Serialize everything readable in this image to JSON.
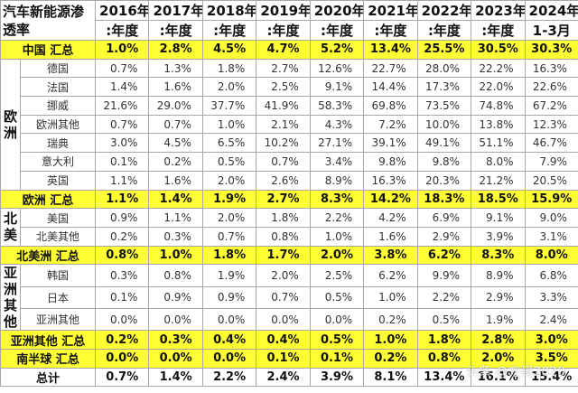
{
  "table": {
    "title": "汽车新能源渗透率",
    "years": [
      "2016年",
      "2017年",
      "2018年",
      "2019年",
      "2020年",
      "2021年",
      "2022年",
      "2023年",
      "2024年"
    ],
    "periods": [
      ":年度",
      ":年度",
      ":年度",
      ":年度",
      ":年度",
      ":年度",
      ":年度",
      ":年度",
      "1-3月"
    ],
    "sections": [
      {
        "summary": {
          "label": "中国 汇总",
          "values": [
            "1.0%",
            "2.8%",
            "4.5%",
            "4.7%",
            "5.2%",
            "13.4%",
            "25.5%",
            "30.5%",
            "30.3%"
          ]
        }
      },
      {
        "region": "欧洲",
        "rows": [
          {
            "label": "德国",
            "values": [
              "0.7%",
              "1.3%",
              "1.8%",
              "2.7%",
              "12.6%",
              "22.7%",
              "28.0%",
              "22.2%",
              "16.3%"
            ]
          },
          {
            "label": "法国",
            "values": [
              "1.4%",
              "1.6%",
              "2.0%",
              "2.5%",
              "9.1%",
              "14.4%",
              "17.3%",
              "22.0%",
              "22.6%"
            ]
          },
          {
            "label": "挪威",
            "values": [
              "21.6%",
              "29.0%",
              "37.7%",
              "41.9%",
              "58.3%",
              "69.8%",
              "73.5%",
              "74.8%",
              "67.2%"
            ]
          },
          {
            "label": "欧洲其他",
            "values": [
              "0.7%",
              "0.7%",
              "1.0%",
              "2.1%",
              "4.3%",
              "7.2%",
              "10.0%",
              "13.8%",
              "12.3%"
            ]
          },
          {
            "label": "瑞典",
            "values": [
              "3.0%",
              "4.5%",
              "6.5%",
              "10.2%",
              "27.1%",
              "39.1%",
              "49.1%",
              "51.1%",
              "46.7%"
            ]
          },
          {
            "label": "意大利",
            "values": [
              "0.1%",
              "0.2%",
              "0.5%",
              "0.7%",
              "3.4%",
              "9.8%",
              "9.8%",
              "8.0%",
              "7.9%"
            ]
          },
          {
            "label": "英国",
            "values": [
              "1.1%",
              "1.6%",
              "2.0%",
              "2.6%",
              "8.9%",
              "16.3%",
              "20.3%",
              "21.2%",
              "20.5%"
            ]
          }
        ],
        "summary": {
          "label": "欧洲 汇总",
          "values": [
            "1.1%",
            "1.4%",
            "1.9%",
            "2.7%",
            "8.3%",
            "14.2%",
            "18.3%",
            "18.5%",
            "15.9%"
          ]
        }
      },
      {
        "region": "北美",
        "rows": [
          {
            "label": "美国",
            "values": [
              "0.9%",
              "1.1%",
              "2.0%",
              "1.8%",
              "2.2%",
              "4.2%",
              "6.9%",
              "9.1%",
              "9.0%"
            ]
          },
          {
            "label": "北美其他",
            "values": [
              "0.2%",
              "0.3%",
              "0.7%",
              "0.8%",
              "1.0%",
              "1.6%",
              "2.9%",
              "3.9%",
              "3.1%"
            ]
          }
        ],
        "summary": {
          "label": "北美洲 汇总",
          "values": [
            "0.8%",
            "1.0%",
            "1.8%",
            "1.7%",
            "2.0%",
            "3.8%",
            "6.2%",
            "8.3%",
            "8.0%"
          ]
        }
      },
      {
        "region": "亚洲其他",
        "rows": [
          {
            "label": "韩国",
            "values": [
              "0.3%",
              "0.8%",
              "1.9%",
              "2.0%",
              "2.5%",
              "6.2%",
              "9.9%",
              "8.9%",
              "6.8%"
            ]
          },
          {
            "label": "日本",
            "values": [
              "0.1%",
              "0.9%",
              "0.9%",
              "0.7%",
              "0.5%",
              "1.0%",
              "2.2%",
              "2.9%",
              "3.3%"
            ]
          },
          {
            "label": "亚洲其他",
            "values": [
              "0.0%",
              "0.0%",
              "0.0%",
              "0.0%",
              "0.0%",
              "0.2%",
              "0.5%",
              "1.9%",
              "2.4%"
            ]
          }
        ],
        "summary": {
          "label": "亚洲其他 汇总",
          "values": [
            "0.2%",
            "0.3%",
            "0.4%",
            "0.4%",
            "0.5%",
            "1.0%",
            "1.8%",
            "2.8%",
            "3.0%"
          ]
        }
      },
      {
        "summary": {
          "label": "南半球 汇总",
          "values": [
            "0.0%",
            "0.0%",
            "0.0%",
            "0.1%",
            "0.1%",
            "0.2%",
            "0.8%",
            "2.0%",
            "3.5%"
          ]
        }
      }
    ],
    "total": {
      "label": "总计",
      "values": [
        "0.7%",
        "1.4%",
        "2.2%",
        "2.4%",
        "3.9%",
        "8.1%",
        "13.4%",
        "16.1%",
        "15.4%"
      ]
    }
  },
  "watermark": "头条 @方哥2020"
}
